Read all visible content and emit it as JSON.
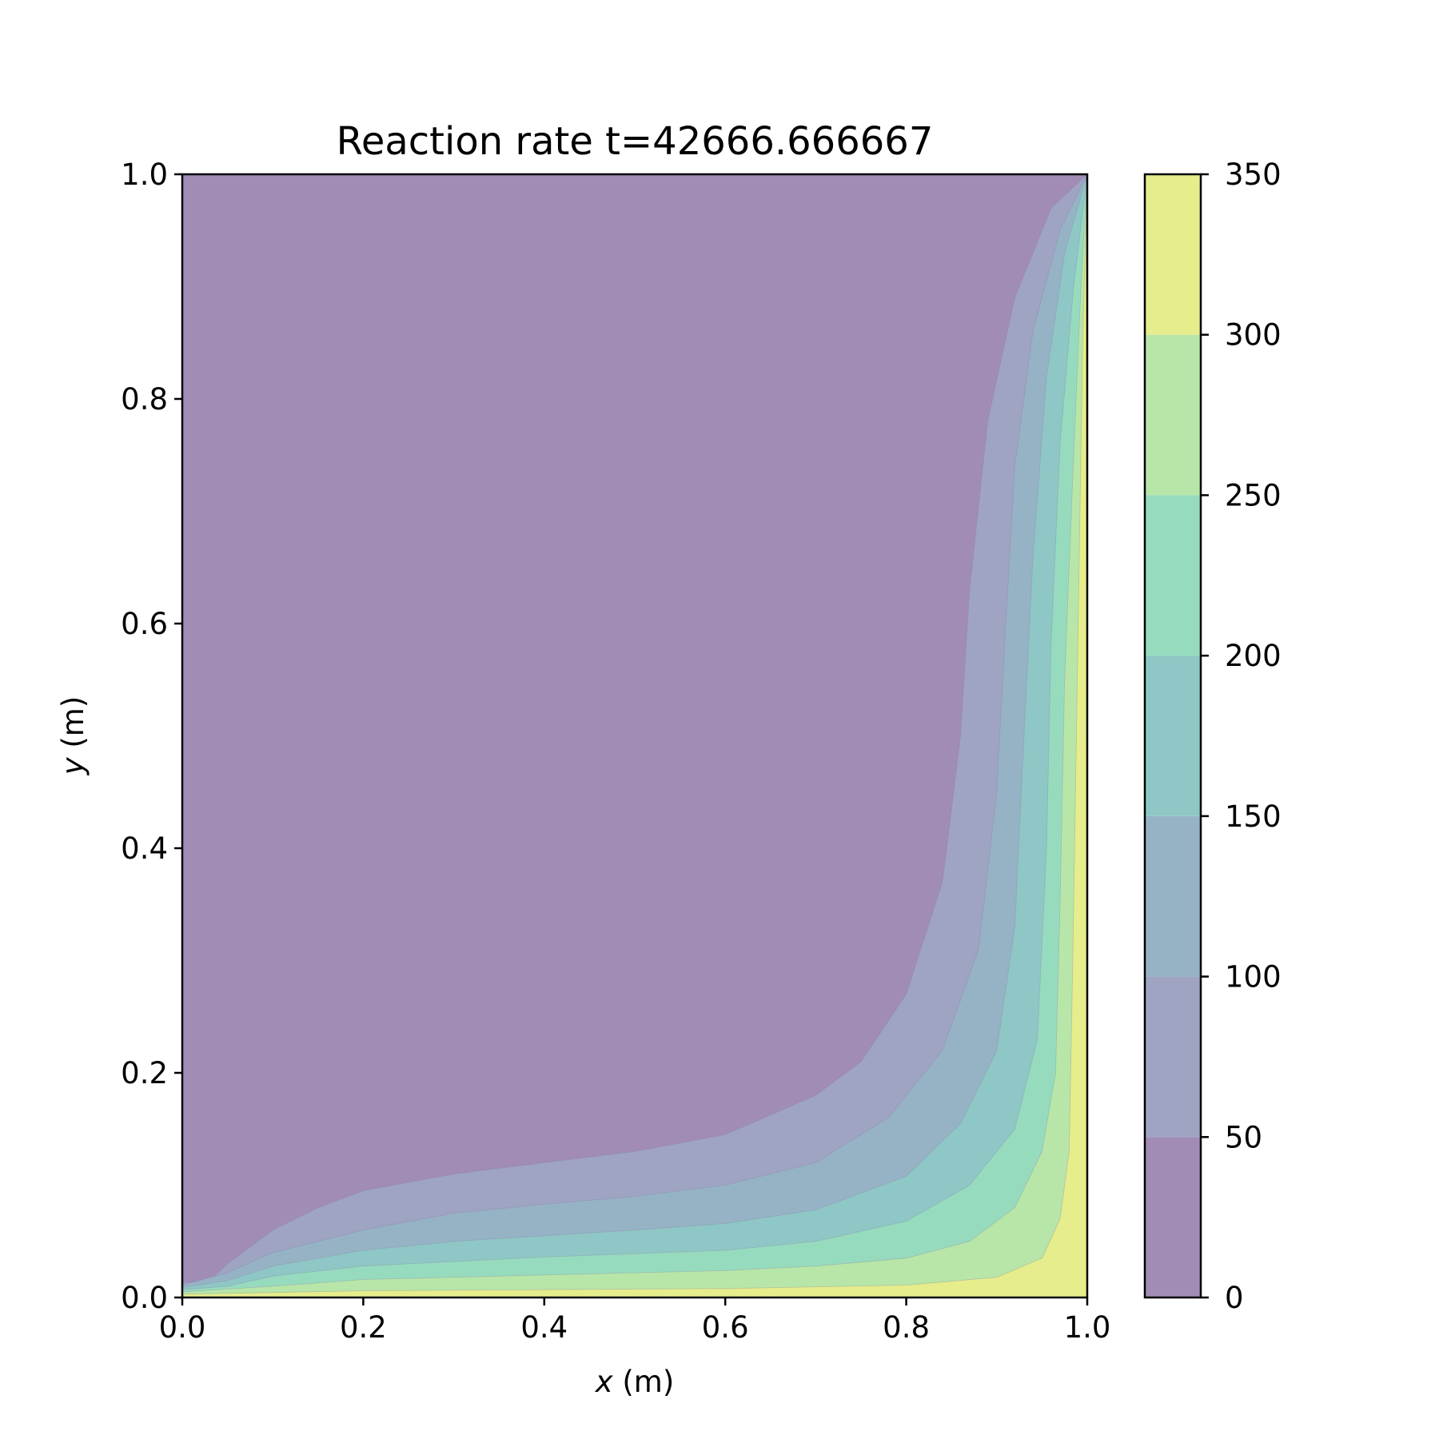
{
  "chart_data": {
    "type": "contour",
    "title": "Reaction rate t=42666.666667",
    "xlabel_var": "x",
    "xlabel_unit": " (m)",
    "ylabel_var": "y",
    "ylabel_unit": " (m)",
    "xlim": [
      0.0,
      1.0
    ],
    "ylim": [
      0.0,
      1.0
    ],
    "x_ticks": [
      0.0,
      0.2,
      0.4,
      0.6,
      0.8,
      1.0
    ],
    "x_tick_labels": [
      "0.0",
      "0.2",
      "0.4",
      "0.6",
      "0.8",
      "1.0"
    ],
    "y_ticks": [
      0.0,
      0.2,
      0.4,
      0.6,
      0.8,
      1.0
    ],
    "y_tick_labels": [
      "0.0",
      "0.2",
      "0.4",
      "0.6",
      "0.8",
      "1.0"
    ],
    "grid": false,
    "colorbar": {
      "levels": [
        0,
        50,
        100,
        150,
        200,
        250,
        300,
        350
      ],
      "tick_labels": [
        "0",
        "50",
        "100",
        "150",
        "200",
        "250",
        "300",
        "350"
      ],
      "colors": [
        "#a18cb5",
        "#9ea4c2",
        "#96b3c5",
        "#8ec7c5",
        "#97dbbf",
        "#b7e6a8",
        "#e5ed8c"
      ]
    },
    "contour_boundaries": [
      {
        "level": 50,
        "points": [
          [
            0.0,
            0.0
          ],
          [
            0.0,
            0.013
          ],
          [
            0.03,
            0.015
          ],
          [
            0.05,
            0.03
          ],
          [
            0.1,
            0.06
          ],
          [
            0.15,
            0.08
          ],
          [
            0.2,
            0.095
          ],
          [
            0.3,
            0.11
          ],
          [
            0.4,
            0.12
          ],
          [
            0.5,
            0.13
          ],
          [
            0.6,
            0.145
          ],
          [
            0.7,
            0.18
          ],
          [
            0.75,
            0.21
          ],
          [
            0.8,
            0.27
          ],
          [
            0.84,
            0.37
          ],
          [
            0.86,
            0.5
          ],
          [
            0.87,
            0.63
          ],
          [
            0.89,
            0.78
          ],
          [
            0.92,
            0.89
          ],
          [
            0.96,
            0.97
          ],
          [
            1.0,
            1.0
          ],
          [
            1.0,
            0.0
          ]
        ]
      },
      {
        "level": 100,
        "points": [
          [
            0.0,
            0.0
          ],
          [
            0.0,
            0.011
          ],
          [
            0.05,
            0.022
          ],
          [
            0.1,
            0.04
          ],
          [
            0.2,
            0.06
          ],
          [
            0.3,
            0.075
          ],
          [
            0.4,
            0.083
          ],
          [
            0.5,
            0.09
          ],
          [
            0.6,
            0.1
          ],
          [
            0.7,
            0.12
          ],
          [
            0.78,
            0.16
          ],
          [
            0.84,
            0.22
          ],
          [
            0.88,
            0.31
          ],
          [
            0.9,
            0.45
          ],
          [
            0.91,
            0.6
          ],
          [
            0.92,
            0.74
          ],
          [
            0.94,
            0.86
          ],
          [
            0.97,
            0.95
          ],
          [
            1.0,
            1.0
          ],
          [
            1.0,
            0.0
          ]
        ]
      },
      {
        "level": 150,
        "points": [
          [
            0.0,
            0.0
          ],
          [
            0.0,
            0.009
          ],
          [
            0.05,
            0.015
          ],
          [
            0.1,
            0.028
          ],
          [
            0.2,
            0.042
          ],
          [
            0.3,
            0.05
          ],
          [
            0.4,
            0.055
          ],
          [
            0.5,
            0.06
          ],
          [
            0.6,
            0.066
          ],
          [
            0.7,
            0.078
          ],
          [
            0.8,
            0.108
          ],
          [
            0.86,
            0.155
          ],
          [
            0.9,
            0.22
          ],
          [
            0.92,
            0.33
          ],
          [
            0.93,
            0.5
          ],
          [
            0.94,
            0.66
          ],
          [
            0.955,
            0.82
          ],
          [
            0.975,
            0.93
          ],
          [
            1.0,
            1.0
          ],
          [
            1.0,
            0.0
          ]
        ]
      },
      {
        "level": 200,
        "points": [
          [
            0.0,
            0.0
          ],
          [
            0.0,
            0.007
          ],
          [
            0.05,
            0.01
          ],
          [
            0.1,
            0.019
          ],
          [
            0.2,
            0.028
          ],
          [
            0.4,
            0.036
          ],
          [
            0.6,
            0.042
          ],
          [
            0.7,
            0.05
          ],
          [
            0.8,
            0.068
          ],
          [
            0.87,
            0.1
          ],
          [
            0.92,
            0.15
          ],
          [
            0.945,
            0.23
          ],
          [
            0.955,
            0.4
          ],
          [
            0.96,
            0.58
          ],
          [
            0.97,
            0.76
          ],
          [
            0.985,
            0.9
          ],
          [
            1.0,
            1.0
          ],
          [
            1.0,
            0.0
          ]
        ]
      },
      {
        "level": 250,
        "points": [
          [
            0.0,
            0.0
          ],
          [
            0.0,
            0.005
          ],
          [
            0.1,
            0.01
          ],
          [
            0.2,
            0.016
          ],
          [
            0.4,
            0.02
          ],
          [
            0.6,
            0.024
          ],
          [
            0.7,
            0.028
          ],
          [
            0.8,
            0.035
          ],
          [
            0.87,
            0.05
          ],
          [
            0.92,
            0.08
          ],
          [
            0.95,
            0.13
          ],
          [
            0.965,
            0.2
          ],
          [
            0.97,
            0.35
          ],
          [
            0.975,
            0.55
          ],
          [
            0.985,
            0.75
          ],
          [
            0.993,
            0.9
          ],
          [
            1.0,
            1.0
          ],
          [
            1.0,
            0.0
          ]
        ]
      },
      {
        "level": 300,
        "points": [
          [
            0.0,
            0.0
          ],
          [
            0.0,
            0.003
          ],
          [
            0.2,
            0.006
          ],
          [
            0.4,
            0.007
          ],
          [
            0.6,
            0.008
          ],
          [
            0.8,
            0.011
          ],
          [
            0.9,
            0.018
          ],
          [
            0.95,
            0.035
          ],
          [
            0.97,
            0.07
          ],
          [
            0.98,
            0.13
          ],
          [
            0.984,
            0.3
          ],
          [
            0.99,
            0.6
          ],
          [
            0.995,
            0.85
          ],
          [
            1.0,
            1.0
          ],
          [
            1.0,
            0.0
          ]
        ]
      }
    ]
  }
}
